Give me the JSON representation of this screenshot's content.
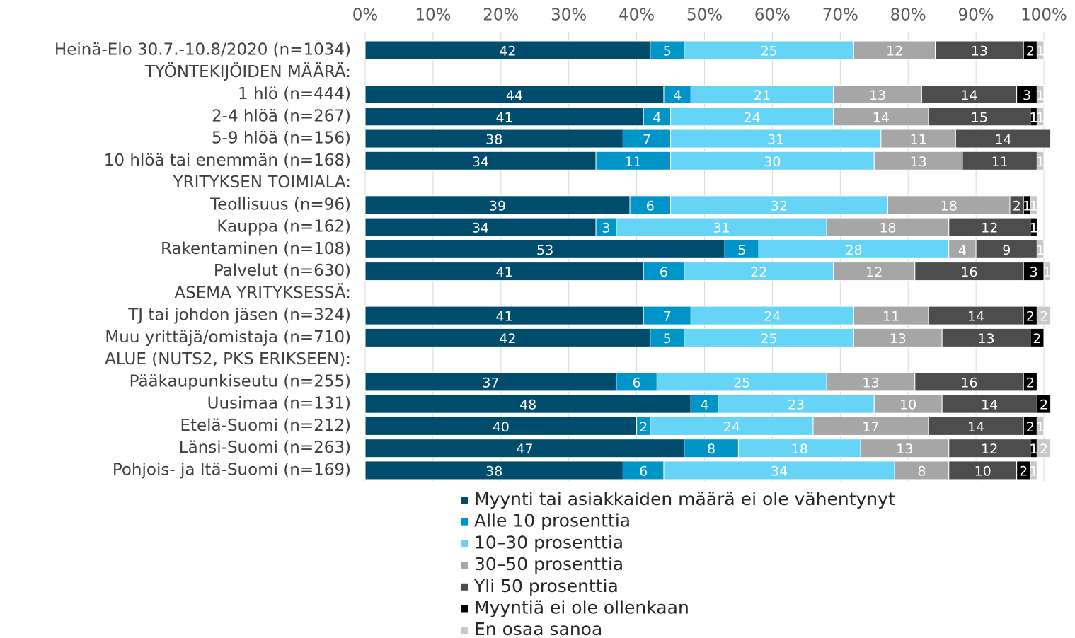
{
  "chart_data": {
    "type": "stacked-bar-horizontal",
    "categories": [
      "Heinä-Elo 30.7.-10.8/2020 (n=1034)",
      "TYÖNTEKIJÖIDEN MÄÄRÄ:",
      "1 hlö (n=444)",
      "2-4 hlöä (n=267)",
      "5-9 hlöä (n=156)",
      "10 hlöä tai enemmän (n=168)",
      "YRITYKSEN TOIMIALA:",
      "Teollisuus (n=96)",
      "Kauppa (n=162)",
      "Rakentaminen (n=108)",
      "Palvelut (n=630)",
      "ASEMA YRITYKSESSÄ:",
      "TJ tai johdon jäsen (n=324)",
      "Muu yrittäjä/omistaja (n=710)",
      "ALUE (NUTS2, PKS ERIKSEEN):",
      "Pääkaupunkiseutu (n=255)",
      "Uusimaa (n=131)",
      "Etelä-Suomi (n=212)",
      "Länsi-Suomi (n=263)",
      "Pohjois- ja Itä-Suomi (n=169)"
    ],
    "series": [
      {
        "name": "Myynti tai asiakkaiden määrä ei ole vähentynyt",
        "color": "#004c6d",
        "values": [
          42,
          null,
          44,
          41,
          38,
          34,
          null,
          39,
          34,
          53,
          41,
          null,
          41,
          42,
          null,
          37,
          48,
          40,
          47,
          38
        ]
      },
      {
        "name": "Alle 10 prosenttia",
        "color": "#0095c8",
        "values": [
          5,
          null,
          4,
          4,
          7,
          11,
          null,
          6,
          3,
          5,
          6,
          null,
          7,
          5,
          null,
          6,
          4,
          2,
          8,
          6
        ]
      },
      {
        "name": "10–30 prosenttia",
        "color": "#66d4f7",
        "values": [
          25,
          null,
          21,
          24,
          31,
          30,
          null,
          32,
          31,
          28,
          22,
          null,
          24,
          25,
          null,
          25,
          23,
          24,
          18,
          34
        ]
      },
      {
        "name": "30–50 prosenttia",
        "color": "#a6a6a6",
        "values": [
          12,
          null,
          13,
          14,
          11,
          13,
          null,
          18,
          18,
          4,
          12,
          null,
          11,
          13,
          null,
          13,
          10,
          17,
          13,
          8
        ]
      },
      {
        "name": "Yli 50 prosenttia",
        "color": "#4d4d4d",
        "values": [
          13,
          null,
          14,
          15,
          14,
          11,
          null,
          2,
          12,
          9,
          16,
          null,
          14,
          13,
          null,
          16,
          14,
          14,
          12,
          10
        ]
      },
      {
        "name": "Myyntiä ei ole ollenkaan",
        "color": "#000000",
        "values": [
          2,
          null,
          3,
          1,
          null,
          null,
          null,
          1,
          1,
          null,
          3,
          null,
          2,
          2,
          null,
          2,
          2,
          2,
          1,
          2
        ]
      },
      {
        "name": "En osaa sanoa",
        "color": "#c8c8c8",
        "values": [
          1,
          null,
          1,
          1,
          null,
          1,
          null,
          1,
          null,
          1,
          1,
          null,
          2,
          null,
          null,
          null,
          null,
          1,
          2,
          1
        ]
      }
    ],
    "xlim": [
      0,
      100
    ],
    "xticks": [
      {
        "value": 0,
        "label": "0%"
      },
      {
        "value": 10,
        "label": "10%"
      },
      {
        "value": 20,
        "label": "20%"
      },
      {
        "value": 30,
        "label": "30%"
      },
      {
        "value": 40,
        "label": "40%"
      },
      {
        "value": 50,
        "label": "50%"
      },
      {
        "value": 60,
        "label": "60%"
      },
      {
        "value": 70,
        "label": "70%"
      },
      {
        "value": 80,
        "label": "80%"
      },
      {
        "value": 90,
        "label": "90%"
      },
      {
        "value": 100,
        "label": "100%"
      }
    ],
    "grid": true,
    "legend": "bottom"
  }
}
